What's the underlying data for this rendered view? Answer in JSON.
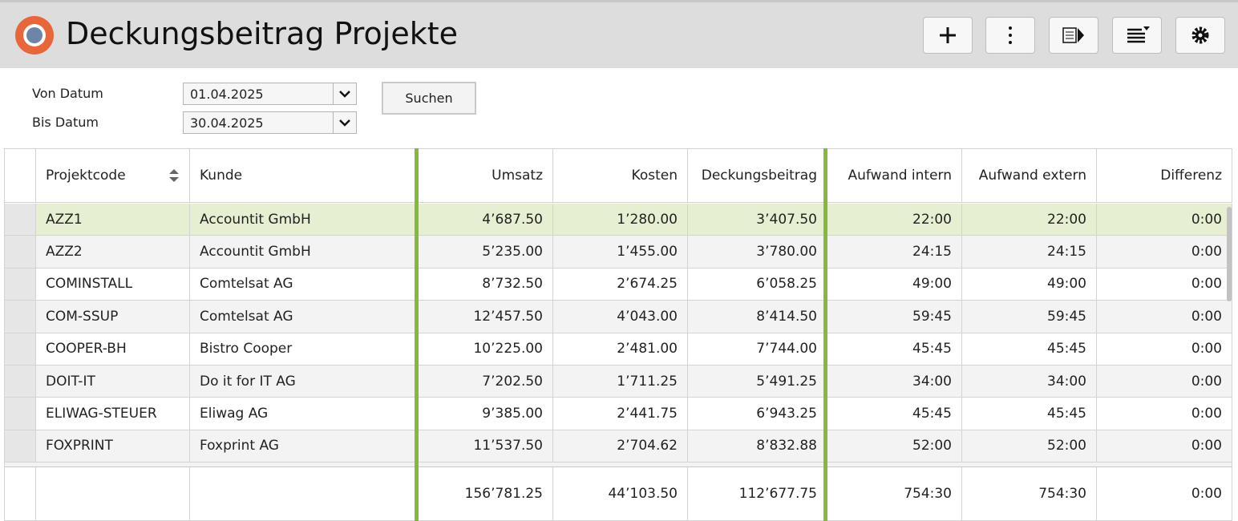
{
  "header": {
    "title": "Deckungsbeitrag Projekte"
  },
  "filters": [
    {
      "label": "Von Datum",
      "value": "01.04.2025"
    },
    {
      "label": "Bis Datum",
      "value": "30.04.2025"
    }
  ],
  "search_button": "Suchen",
  "table": {
    "columns": [
      "Projektcode",
      "Kunde",
      "Umsatz",
      "Kosten",
      "Deckungsbeitrag",
      "Aufwand intern",
      "Aufwand extern",
      "Differenz"
    ],
    "rows": [
      [
        "AZZ1",
        "Accountit GmbH",
        "4’687.50",
        "1’280.00",
        "3’407.50",
        "22:00",
        "22:00",
        "0:00"
      ],
      [
        "AZZ2",
        "Accountit GmbH",
        "5’235.00",
        "1’455.00",
        "3’780.00",
        "24:15",
        "24:15",
        "0:00"
      ],
      [
        "COMINSTALL",
        "Comtelsat AG",
        "8’732.50",
        "2’674.25",
        "6’058.25",
        "49:00",
        "49:00",
        "0:00"
      ],
      [
        "COM-SSUP",
        "Comtelsat AG",
        "12’457.50",
        "4’043.00",
        "8’414.50",
        "59:45",
        "59:45",
        "0:00"
      ],
      [
        "COOPER-BH",
        "Bistro Cooper",
        "10’225.00",
        "2’481.00",
        "7’744.00",
        "45:45",
        "45:45",
        "0:00"
      ],
      [
        "DOIT-IT",
        "Do it for IT AG",
        "7’202.50",
        "1’711.25",
        "5’491.25",
        "34:00",
        "34:00",
        "0:00"
      ],
      [
        "ELIWAG-STEUER",
        "Eliwag AG",
        "9’385.00",
        "2’441.75",
        "6’943.25",
        "45:45",
        "45:45",
        "0:00"
      ],
      [
        "FOXPRINT",
        "Foxprint AG",
        "11’537.50",
        "2’704.62",
        "8’832.88",
        "52:00",
        "52:00",
        "0:00"
      ]
    ],
    "totals": [
      "156’781.25",
      "44’103.50",
      "112’677.75",
      "754:30",
      "754:30",
      "0:00"
    ]
  }
}
